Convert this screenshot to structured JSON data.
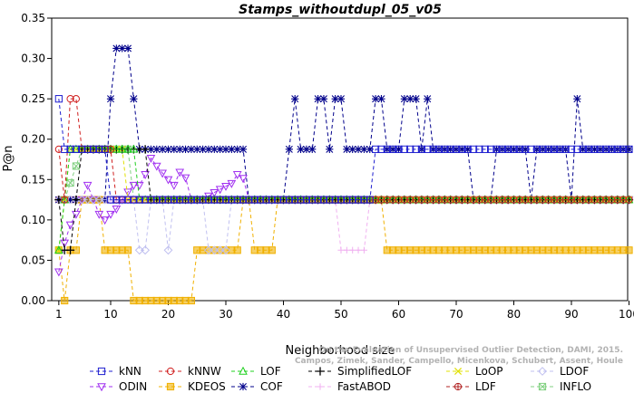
{
  "chart_data": {
    "type": "line",
    "title": "Stamps_withoutdupl_05_v05",
    "xlabel": "Neighborhood size",
    "ylabel": "P@n",
    "xlim": [
      0,
      100
    ],
    "ylim": [
      0,
      0.35
    ],
    "xticks": [
      1,
      10,
      20,
      30,
      40,
      50,
      60,
      70,
      80,
      90,
      100
    ],
    "yticks": [
      0.0,
      0.05,
      0.1,
      0.15,
      0.2,
      0.25,
      0.3,
      0.35
    ],
    "ytick_labels": [
      "0.00",
      "0.05",
      "0.10",
      "0.15",
      "0.20",
      "0.25",
      "0.30",
      "0.35"
    ],
    "grid": false,
    "legend_position": "bottom",
    "citation": [
      "Campos, Zimek, Sander, Campello, Micenkova, Schubert, Assent, Houle",
      "On the Evaluation of Unsupervised Outlier Detection, DAMI, 2015."
    ],
    "series": [
      {
        "name": "kNN",
        "color": "#1f1fd0",
        "marker": "square",
        "segments": [
          [
            1,
            0.25
          ],
          [
            2,
            0.1875
          ],
          [
            9,
            0.1875
          ],
          [
            10,
            0.125
          ],
          [
            55,
            0.125
          ],
          [
            56,
            0.1875
          ],
          [
            100,
            0.1875
          ]
        ]
      },
      {
        "name": "kNNW",
        "color": "#d01f1f",
        "marker": "circle",
        "segments": [
          [
            1,
            0.1875
          ],
          [
            2,
            0.125
          ],
          [
            3,
            0.25
          ],
          [
            4,
            0.25
          ],
          [
            5,
            0.1875
          ],
          [
            10,
            0.1875
          ],
          [
            11,
            0.125
          ],
          [
            100,
            0.125
          ]
        ]
      },
      {
        "name": "LOF",
        "color": "#1fd01f",
        "marker": "triangle",
        "segments": [
          [
            1,
            0.0625
          ],
          [
            2,
            0.125
          ],
          [
            3,
            0.1875
          ],
          [
            14,
            0.1875
          ],
          [
            15,
            0.125
          ],
          [
            100,
            0.125
          ]
        ]
      },
      {
        "name": "SimplifiedLOF",
        "color": "#000000",
        "marker": "plus",
        "segments": [
          [
            1,
            0.125
          ],
          [
            2,
            0.0625
          ],
          [
            3,
            0.0625
          ],
          [
            4,
            0.125
          ],
          [
            5,
            0.1875
          ],
          [
            16,
            0.1875
          ],
          [
            17,
            0.125
          ],
          [
            100,
            0.125
          ]
        ]
      },
      {
        "name": "LoOP",
        "color": "#e0e000",
        "marker": "x",
        "segments": [
          [
            1,
            0.0625
          ],
          [
            2,
            0.125
          ],
          [
            3,
            0.1875
          ],
          [
            12,
            0.1875
          ],
          [
            13,
            0.125
          ],
          [
            100,
            0.125
          ]
        ]
      },
      {
        "name": "LDOF",
        "color": "#c0c0f0",
        "marker": "diamond",
        "segments": [
          [
            1,
            0.125
          ],
          [
            14,
            0.125
          ],
          [
            15,
            0.0625
          ],
          [
            16,
            0.0625
          ],
          [
            17,
            0.125
          ],
          [
            19,
            0.125
          ],
          [
            20,
            0.0625
          ],
          [
            21,
            0.125
          ],
          [
            26,
            0.125
          ],
          [
            27,
            0.0625
          ],
          [
            30,
            0.0625
          ],
          [
            31,
            0.125
          ],
          [
            100,
            0.125
          ]
        ]
      },
      {
        "name": "ODIN",
        "color": "#a02ff0",
        "marker": "triangle-down",
        "segments": [
          [
            1,
            0.0357
          ],
          [
            2,
            0.0714
          ],
          [
            3,
            0.0938
          ],
          [
            4,
            0.1071
          ],
          [
            5,
            0.125
          ],
          [
            6,
            0.1429
          ],
          [
            7,
            0.125
          ],
          [
            8,
            0.1071
          ],
          [
            9,
            0.1
          ],
          [
            10,
            0.1071
          ],
          [
            11,
            0.1136
          ],
          [
            12,
            0.125
          ],
          [
            13,
            0.1346
          ],
          [
            14,
            0.1429
          ],
          [
            15,
            0.1429
          ],
          [
            16,
            0.1562
          ],
          [
            17,
            0.1765
          ],
          [
            18,
            0.1667
          ],
          [
            19,
            0.1579
          ],
          [
            20,
            0.15
          ],
          [
            21,
            0.1429
          ],
          [
            22,
            0.1591
          ],
          [
            23,
            0.1522
          ],
          [
            24,
            0.125
          ],
          [
            25,
            0.125
          ],
          [
            26,
            0.125
          ],
          [
            27,
            0.1296
          ],
          [
            28,
            0.1339
          ],
          [
            29,
            0.1379
          ],
          [
            30,
            0.1417
          ],
          [
            31,
            0.1452
          ],
          [
            32,
            0.1562
          ],
          [
            33,
            0.1515
          ],
          [
            34,
            0.125
          ],
          [
            100,
            0.125
          ]
        ]
      },
      {
        "name": "KDEOS",
        "color": "#f0b000",
        "marker": "square-filled",
        "segments": [
          [
            1,
            0.0625
          ],
          [
            2,
            0.0
          ],
          [
            3,
            0.0625
          ],
          [
            4,
            0.0625
          ],
          [
            5,
            0.125
          ],
          [
            8,
            0.125
          ],
          [
            9,
            0.0625
          ],
          [
            13,
            0.0625
          ],
          [
            14,
            0.0
          ],
          [
            24,
            0.0
          ],
          [
            25,
            0.0625
          ],
          [
            32,
            0.0625
          ],
          [
            33,
            0.125
          ],
          [
            34,
            0.125
          ],
          [
            35,
            0.0625
          ],
          [
            38,
            0.0625
          ],
          [
            39,
            0.125
          ],
          [
            57,
            0.125
          ],
          [
            58,
            0.0625
          ],
          [
            100,
            0.0625
          ]
        ]
      },
      {
        "name": "COF",
        "color": "#00008b",
        "marker": "asterisk",
        "segments": [
          [
            1,
            0.125
          ],
          [
            9,
            0.125
          ],
          [
            10,
            0.25
          ],
          [
            11,
            0.3125
          ],
          [
            12,
            0.3125
          ],
          [
            13,
            0.3125
          ],
          [
            14,
            0.25
          ],
          [
            15,
            0.1875
          ],
          [
            33,
            0.1875
          ],
          [
            34,
            0.125
          ],
          [
            40,
            0.125
          ],
          [
            41,
            0.1875
          ],
          [
            42,
            0.25
          ],
          [
            43,
            0.1875
          ],
          [
            44,
            0.1875
          ],
          [
            45,
            0.1875
          ],
          [
            46,
            0.25
          ],
          [
            47,
            0.25
          ],
          [
            48,
            0.1875
          ],
          [
            49,
            0.25
          ],
          [
            50,
            0.25
          ],
          [
            51,
            0.1875
          ],
          [
            55,
            0.1875
          ],
          [
            56,
            0.25
          ],
          [
            57,
            0.25
          ],
          [
            58,
            0.1875
          ],
          [
            60,
            0.1875
          ],
          [
            61,
            0.25
          ],
          [
            62,
            0.25
          ],
          [
            63,
            0.25
          ],
          [
            64,
            0.1875
          ],
          [
            65,
            0.25
          ],
          [
            66,
            0.1875
          ],
          [
            72,
            0.1875
          ],
          [
            73,
            0.125
          ],
          [
            76,
            0.125
          ],
          [
            77,
            0.1875
          ],
          [
            82,
            0.1875
          ],
          [
            83,
            0.125
          ],
          [
            84,
            0.1875
          ],
          [
            89,
            0.1875
          ],
          [
            90,
            0.125
          ],
          [
            91,
            0.25
          ],
          [
            92,
            0.1875
          ],
          [
            100,
            0.1875
          ]
        ]
      },
      {
        "name": "FastABOD",
        "color": "#f0b0f0",
        "marker": "plus-light",
        "segments": [
          [
            1,
            0.125
          ],
          [
            49,
            0.125
          ],
          [
            50,
            0.0625
          ],
          [
            54,
            0.0625
          ],
          [
            55,
            0.125
          ],
          [
            100,
            0.125
          ]
        ]
      },
      {
        "name": "LDF",
        "color": "#b02020",
        "marker": "circle-plus",
        "segments": [
          [
            1,
            0.125
          ],
          [
            55,
            0.125
          ],
          [
            100,
            0.125
          ]
        ]
      },
      {
        "name": "INFLO",
        "color": "#80d080",
        "marker": "square-x",
        "segments": [
          [
            1,
            0.0625
          ],
          [
            2,
            0.125
          ],
          [
            5,
            0.1875
          ],
          [
            13,
            0.1875
          ],
          [
            14,
            0.125
          ],
          [
            100,
            0.125
          ]
        ]
      }
    ]
  }
}
